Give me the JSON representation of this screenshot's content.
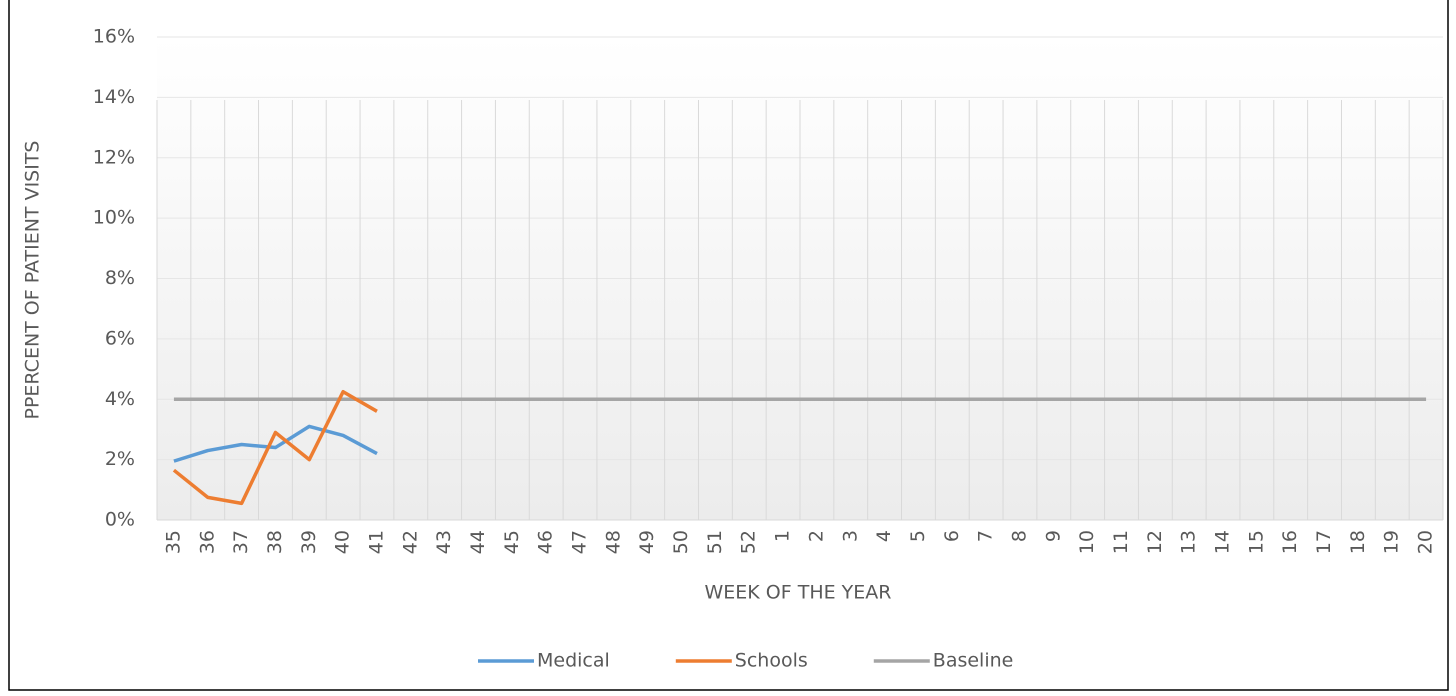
{
  "chart_data": {
    "type": "line",
    "x_label": "WEEK OF THE YEAR",
    "y_label": "PPERCENT OF PATIENT VISITS",
    "categories": [
      "35",
      "36",
      "37",
      "38",
      "39",
      "40",
      "41",
      "42",
      "43",
      "44",
      "45",
      "46",
      "47",
      "48",
      "49",
      "50",
      "51",
      "52",
      "1",
      "2",
      "3",
      "4",
      "5",
      "6",
      "7",
      "8",
      "9",
      "10",
      "11",
      "12",
      "13",
      "14",
      "15",
      "16",
      "17",
      "18",
      "19",
      "20"
    ],
    "series": [
      {
        "name": "Medical",
        "color": "#5b9bd5",
        "values": [
          1.95,
          2.3,
          2.5,
          2.4,
          3.1,
          2.8,
          2.2,
          null,
          null,
          null,
          null,
          null,
          null,
          null,
          null,
          null,
          null,
          null,
          null,
          null,
          null,
          null,
          null,
          null,
          null,
          null,
          null,
          null,
          null,
          null,
          null,
          null,
          null,
          null,
          null,
          null,
          null,
          null
        ]
      },
      {
        "name": "Schools",
        "color": "#ed7d31",
        "values": [
          1.65,
          0.75,
          0.55,
          2.9,
          2.0,
          4.25,
          3.6,
          null,
          null,
          null,
          null,
          null,
          null,
          null,
          null,
          null,
          null,
          null,
          null,
          null,
          null,
          null,
          null,
          null,
          null,
          null,
          null,
          null,
          null,
          null,
          null,
          null,
          null,
          null,
          null,
          null,
          null,
          null
        ]
      },
      {
        "name": "Baseline",
        "color": "#a5a5a5",
        "values": [
          4,
          4,
          4,
          4,
          4,
          4,
          4,
          4,
          4,
          4,
          4,
          4,
          4,
          4,
          4,
          4,
          4,
          4,
          4,
          4,
          4,
          4,
          4,
          4,
          4,
          4,
          4,
          4,
          4,
          4,
          4,
          4,
          4,
          4,
          4,
          4,
          4,
          4
        ]
      }
    ],
    "ylim": [
      0,
      16
    ],
    "yticks": [
      {
        "value": 0,
        "label": "0%"
      },
      {
        "value": 2,
        "label": "2%"
      },
      {
        "value": 4,
        "label": "4%"
      },
      {
        "value": 6,
        "label": "6%"
      },
      {
        "value": 8,
        "label": "8%"
      },
      {
        "value": 10,
        "label": "10%"
      },
      {
        "value": 12,
        "label": "12%"
      },
      {
        "value": 14,
        "label": "14%"
      },
      {
        "value": 16,
        "label": "16%"
      }
    ],
    "grid": true,
    "legend": "bottom"
  }
}
